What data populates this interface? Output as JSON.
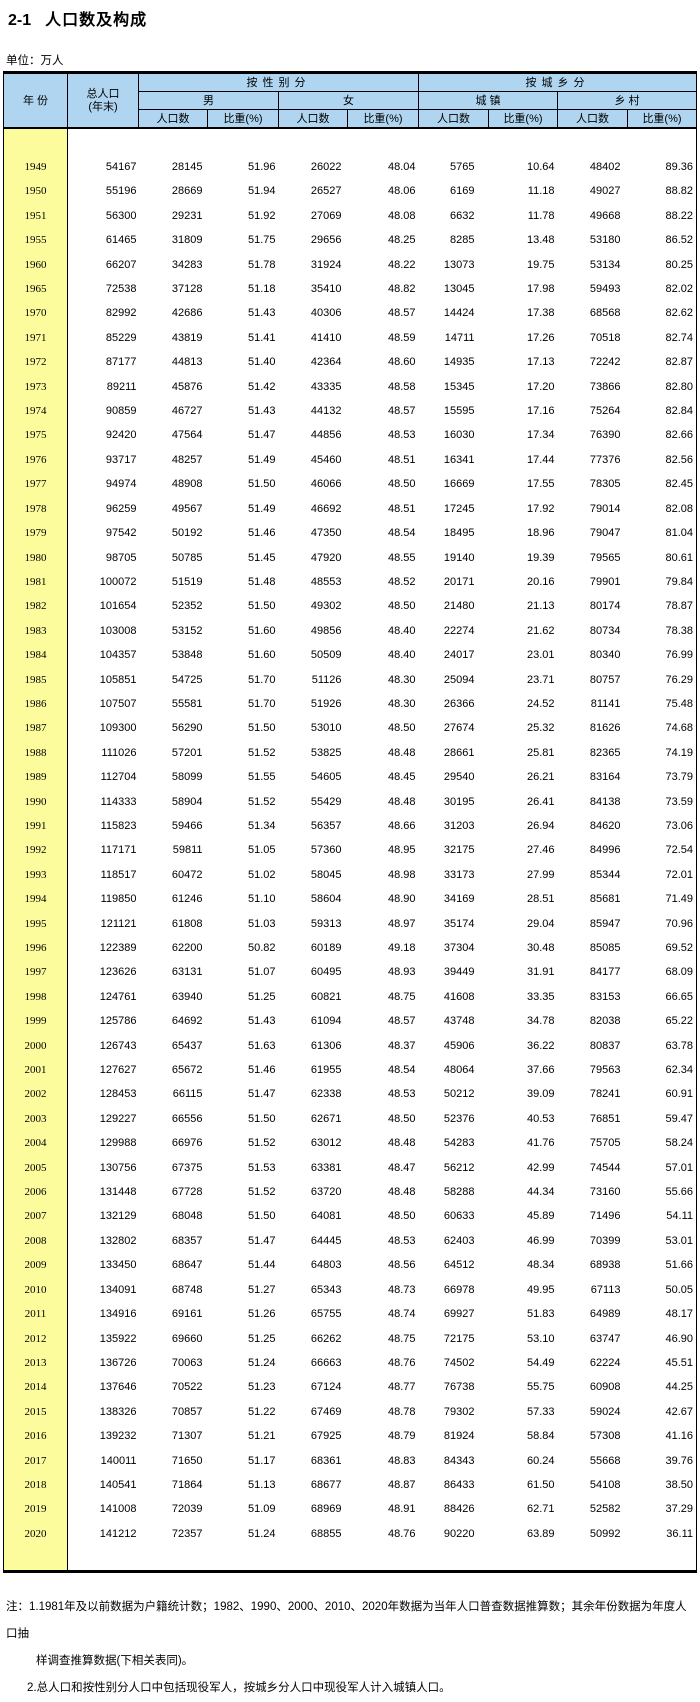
{
  "page": {
    "title_prefix": "2-1",
    "title_text": "人口数及构成",
    "unit_label": "单位：万人"
  },
  "table": {
    "headers": {
      "year": "年 份",
      "total_line1": "总人口",
      "total_line2": "(年末)",
      "by_gender": "按性别分",
      "by_urban_rural": "按城乡分",
      "male": "男",
      "female": "女",
      "urban": "城 镇",
      "rural": "乡 村",
      "population": "人口数",
      "share": "比重(%)"
    },
    "columns": [
      "year",
      "total",
      "male_pop",
      "male_share",
      "female_pop",
      "female_share",
      "urban_pop",
      "urban_share",
      "rural_pop",
      "rural_share"
    ],
    "rows": [
      [
        "1949",
        "54167",
        "28145",
        "51.96",
        "26022",
        "48.04",
        "5765",
        "10.64",
        "48402",
        "89.36"
      ],
      [
        "1950",
        "55196",
        "28669",
        "51.94",
        "26527",
        "48.06",
        "6169",
        "11.18",
        "49027",
        "88.82"
      ],
      [
        "1951",
        "56300",
        "29231",
        "51.92",
        "27069",
        "48.08",
        "6632",
        "11.78",
        "49668",
        "88.22"
      ],
      [
        "1955",
        "61465",
        "31809",
        "51.75",
        "29656",
        "48.25",
        "8285",
        "13.48",
        "53180",
        "86.52"
      ],
      [
        "1960",
        "66207",
        "34283",
        "51.78",
        "31924",
        "48.22",
        "13073",
        "19.75",
        "53134",
        "80.25"
      ],
      [
        "1965",
        "72538",
        "37128",
        "51.18",
        "35410",
        "48.82",
        "13045",
        "17.98",
        "59493",
        "82.02"
      ],
      [
        "1970",
        "82992",
        "42686",
        "51.43",
        "40306",
        "48.57",
        "14424",
        "17.38",
        "68568",
        "82.62"
      ],
      [
        "1971",
        "85229",
        "43819",
        "51.41",
        "41410",
        "48.59",
        "14711",
        "17.26",
        "70518",
        "82.74"
      ],
      [
        "1972",
        "87177",
        "44813",
        "51.40",
        "42364",
        "48.60",
        "14935",
        "17.13",
        "72242",
        "82.87"
      ],
      [
        "1973",
        "89211",
        "45876",
        "51.42",
        "43335",
        "48.58",
        "15345",
        "17.20",
        "73866",
        "82.80"
      ],
      [
        "1974",
        "90859",
        "46727",
        "51.43",
        "44132",
        "48.57",
        "15595",
        "17.16",
        "75264",
        "82.84"
      ],
      [
        "1975",
        "92420",
        "47564",
        "51.47",
        "44856",
        "48.53",
        "16030",
        "17.34",
        "76390",
        "82.66"
      ],
      [
        "1976",
        "93717",
        "48257",
        "51.49",
        "45460",
        "48.51",
        "16341",
        "17.44",
        "77376",
        "82.56"
      ],
      [
        "1977",
        "94974",
        "48908",
        "51.50",
        "46066",
        "48.50",
        "16669",
        "17.55",
        "78305",
        "82.45"
      ],
      [
        "1978",
        "96259",
        "49567",
        "51.49",
        "46692",
        "48.51",
        "17245",
        "17.92",
        "79014",
        "82.08"
      ],
      [
        "1979",
        "97542",
        "50192",
        "51.46",
        "47350",
        "48.54",
        "18495",
        "18.96",
        "79047",
        "81.04"
      ],
      [
        "1980",
        "98705",
        "50785",
        "51.45",
        "47920",
        "48.55",
        "19140",
        "19.39",
        "79565",
        "80.61"
      ],
      [
        "1981",
        "100072",
        "51519",
        "51.48",
        "48553",
        "48.52",
        "20171",
        "20.16",
        "79901",
        "79.84"
      ],
      [
        "1982",
        "101654",
        "52352",
        "51.50",
        "49302",
        "48.50",
        "21480",
        "21.13",
        "80174",
        "78.87"
      ],
      [
        "1983",
        "103008",
        "53152",
        "51.60",
        "49856",
        "48.40",
        "22274",
        "21.62",
        "80734",
        "78.38"
      ],
      [
        "1984",
        "104357",
        "53848",
        "51.60",
        "50509",
        "48.40",
        "24017",
        "23.01",
        "80340",
        "76.99"
      ],
      [
        "1985",
        "105851",
        "54725",
        "51.70",
        "51126",
        "48.30",
        "25094",
        "23.71",
        "80757",
        "76.29"
      ],
      [
        "1986",
        "107507",
        "55581",
        "51.70",
        "51926",
        "48.30",
        "26366",
        "24.52",
        "81141",
        "75.48"
      ],
      [
        "1987",
        "109300",
        "56290",
        "51.50",
        "53010",
        "48.50",
        "27674",
        "25.32",
        "81626",
        "74.68"
      ],
      [
        "1988",
        "111026",
        "57201",
        "51.52",
        "53825",
        "48.48",
        "28661",
        "25.81",
        "82365",
        "74.19"
      ],
      [
        "1989",
        "112704",
        "58099",
        "51.55",
        "54605",
        "48.45",
        "29540",
        "26.21",
        "83164",
        "73.79"
      ],
      [
        "1990",
        "114333",
        "58904",
        "51.52",
        "55429",
        "48.48",
        "30195",
        "26.41",
        "84138",
        "73.59"
      ],
      [
        "1991",
        "115823",
        "59466",
        "51.34",
        "56357",
        "48.66",
        "31203",
        "26.94",
        "84620",
        "73.06"
      ],
      [
        "1992",
        "117171",
        "59811",
        "51.05",
        "57360",
        "48.95",
        "32175",
        "27.46",
        "84996",
        "72.54"
      ],
      [
        "1993",
        "118517",
        "60472",
        "51.02",
        "58045",
        "48.98",
        "33173",
        "27.99",
        "85344",
        "72.01"
      ],
      [
        "1994",
        "119850",
        "61246",
        "51.10",
        "58604",
        "48.90",
        "34169",
        "28.51",
        "85681",
        "71.49"
      ],
      [
        "1995",
        "121121",
        "61808",
        "51.03",
        "59313",
        "48.97",
        "35174",
        "29.04",
        "85947",
        "70.96"
      ],
      [
        "1996",
        "122389",
        "62200",
        "50.82",
        "60189",
        "49.18",
        "37304",
        "30.48",
        "85085",
        "69.52"
      ],
      [
        "1997",
        "123626",
        "63131",
        "51.07",
        "60495",
        "48.93",
        "39449",
        "31.91",
        "84177",
        "68.09"
      ],
      [
        "1998",
        "124761",
        "63940",
        "51.25",
        "60821",
        "48.75",
        "41608",
        "33.35",
        "83153",
        "66.65"
      ],
      [
        "1999",
        "125786",
        "64692",
        "51.43",
        "61094",
        "48.57",
        "43748",
        "34.78",
        "82038",
        "65.22"
      ],
      [
        "2000",
        "126743",
        "65437",
        "51.63",
        "61306",
        "48.37",
        "45906",
        "36.22",
        "80837",
        "63.78"
      ],
      [
        "2001",
        "127627",
        "65672",
        "51.46",
        "61955",
        "48.54",
        "48064",
        "37.66",
        "79563",
        "62.34"
      ],
      [
        "2002",
        "128453",
        "66115",
        "51.47",
        "62338",
        "48.53",
        "50212",
        "39.09",
        "78241",
        "60.91"
      ],
      [
        "2003",
        "129227",
        "66556",
        "51.50",
        "62671",
        "48.50",
        "52376",
        "40.53",
        "76851",
        "59.47"
      ],
      [
        "2004",
        "129988",
        "66976",
        "51.52",
        "63012",
        "48.48",
        "54283",
        "41.76",
        "75705",
        "58.24"
      ],
      [
        "2005",
        "130756",
        "67375",
        "51.53",
        "63381",
        "48.47",
        "56212",
        "42.99",
        "74544",
        "57.01"
      ],
      [
        "2006",
        "131448",
        "67728",
        "51.52",
        "63720",
        "48.48",
        "58288",
        "44.34",
        "73160",
        "55.66"
      ],
      [
        "2007",
        "132129",
        "68048",
        "51.50",
        "64081",
        "48.50",
        "60633",
        "45.89",
        "71496",
        "54.11"
      ],
      [
        "2008",
        "132802",
        "68357",
        "51.47",
        "64445",
        "48.53",
        "62403",
        "46.99",
        "70399",
        "53.01"
      ],
      [
        "2009",
        "133450",
        "68647",
        "51.44",
        "64803",
        "48.56",
        "64512",
        "48.34",
        "68938",
        "51.66"
      ],
      [
        "2010",
        "134091",
        "68748",
        "51.27",
        "65343",
        "48.73",
        "66978",
        "49.95",
        "67113",
        "50.05"
      ],
      [
        "2011",
        "134916",
        "69161",
        "51.26",
        "65755",
        "48.74",
        "69927",
        "51.83",
        "64989",
        "48.17"
      ],
      [
        "2012",
        "135922",
        "69660",
        "51.25",
        "66262",
        "48.75",
        "72175",
        "53.10",
        "63747",
        "46.90"
      ],
      [
        "2013",
        "136726",
        "70063",
        "51.24",
        "66663",
        "48.76",
        "74502",
        "54.49",
        "62224",
        "45.51"
      ],
      [
        "2014",
        "137646",
        "70522",
        "51.23",
        "67124",
        "48.77",
        "76738",
        "55.75",
        "60908",
        "44.25"
      ],
      [
        "2015",
        "138326",
        "70857",
        "51.22",
        "67469",
        "48.78",
        "79302",
        "57.33",
        "59024",
        "42.67"
      ],
      [
        "2016",
        "139232",
        "71307",
        "51.21",
        "67925",
        "48.79",
        "81924",
        "58.84",
        "57308",
        "41.16"
      ],
      [
        "2017",
        "140011",
        "71650",
        "51.17",
        "68361",
        "48.83",
        "84343",
        "60.24",
        "55668",
        "39.76"
      ],
      [
        "2018",
        "140541",
        "71864",
        "51.13",
        "68677",
        "48.87",
        "86433",
        "61.50",
        "54108",
        "38.50"
      ],
      [
        "2019",
        "141008",
        "72039",
        "51.09",
        "68969",
        "48.91",
        "88426",
        "62.71",
        "52582",
        "37.29"
      ],
      [
        "2020",
        "141212",
        "72357",
        "51.24",
        "68855",
        "48.76",
        "90220",
        "63.89",
        "50992",
        "36.11"
      ]
    ]
  },
  "notes": {
    "line1": "注：1.1981年及以前数据为户籍统计数；1982、1990、2000、2010、2020年数据为当年人口普查数据推算数；其余年份数据为年度人口抽",
    "line2": "样调查推算数据(下相关表同)。",
    "line3": "2.总人口和按性别分人口中包括现役军人，按城乡分人口中现役军人计入城镇人口。"
  },
  "colors": {
    "header_bg": "#AFD5F0",
    "year_col_bg": "#FDFC9C",
    "border": "#000000"
  }
}
